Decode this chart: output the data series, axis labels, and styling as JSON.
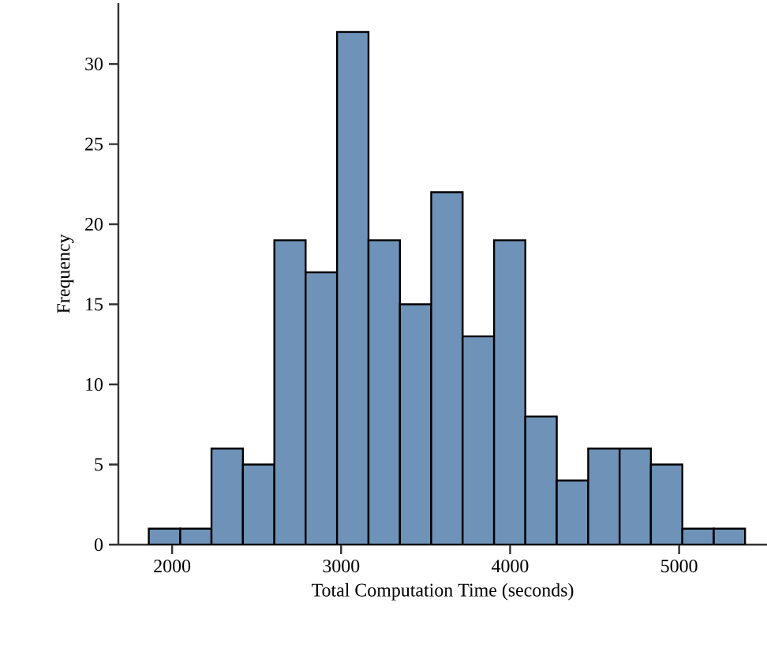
{
  "chart_data": {
    "type": "histogram",
    "xlabel": "Total Computation Time (seconds)",
    "ylabel": "Frequency",
    "bins": [
      1862,
      2048,
      2233,
      2419,
      2605,
      2790,
      2976,
      3162,
      3348,
      3533,
      3719,
      3905,
      4090,
      4276,
      4462,
      4648,
      4833,
      5019,
      5205,
      5390
    ],
    "values": [
      1,
      1,
      6,
      5,
      19,
      17,
      32,
      19,
      15,
      22,
      13,
      19,
      8,
      4,
      6,
      6,
      5,
      1,
      1
    ],
    "color": "#6f93b8",
    "xlim": [
      1682,
      5520
    ],
    "ylim": [
      0,
      33.8
    ],
    "xticks": [
      2000,
      3000,
      4000,
      5000
    ],
    "yticks": [
      0,
      5,
      10,
      15,
      20,
      25,
      30
    ],
    "grid": false
  }
}
